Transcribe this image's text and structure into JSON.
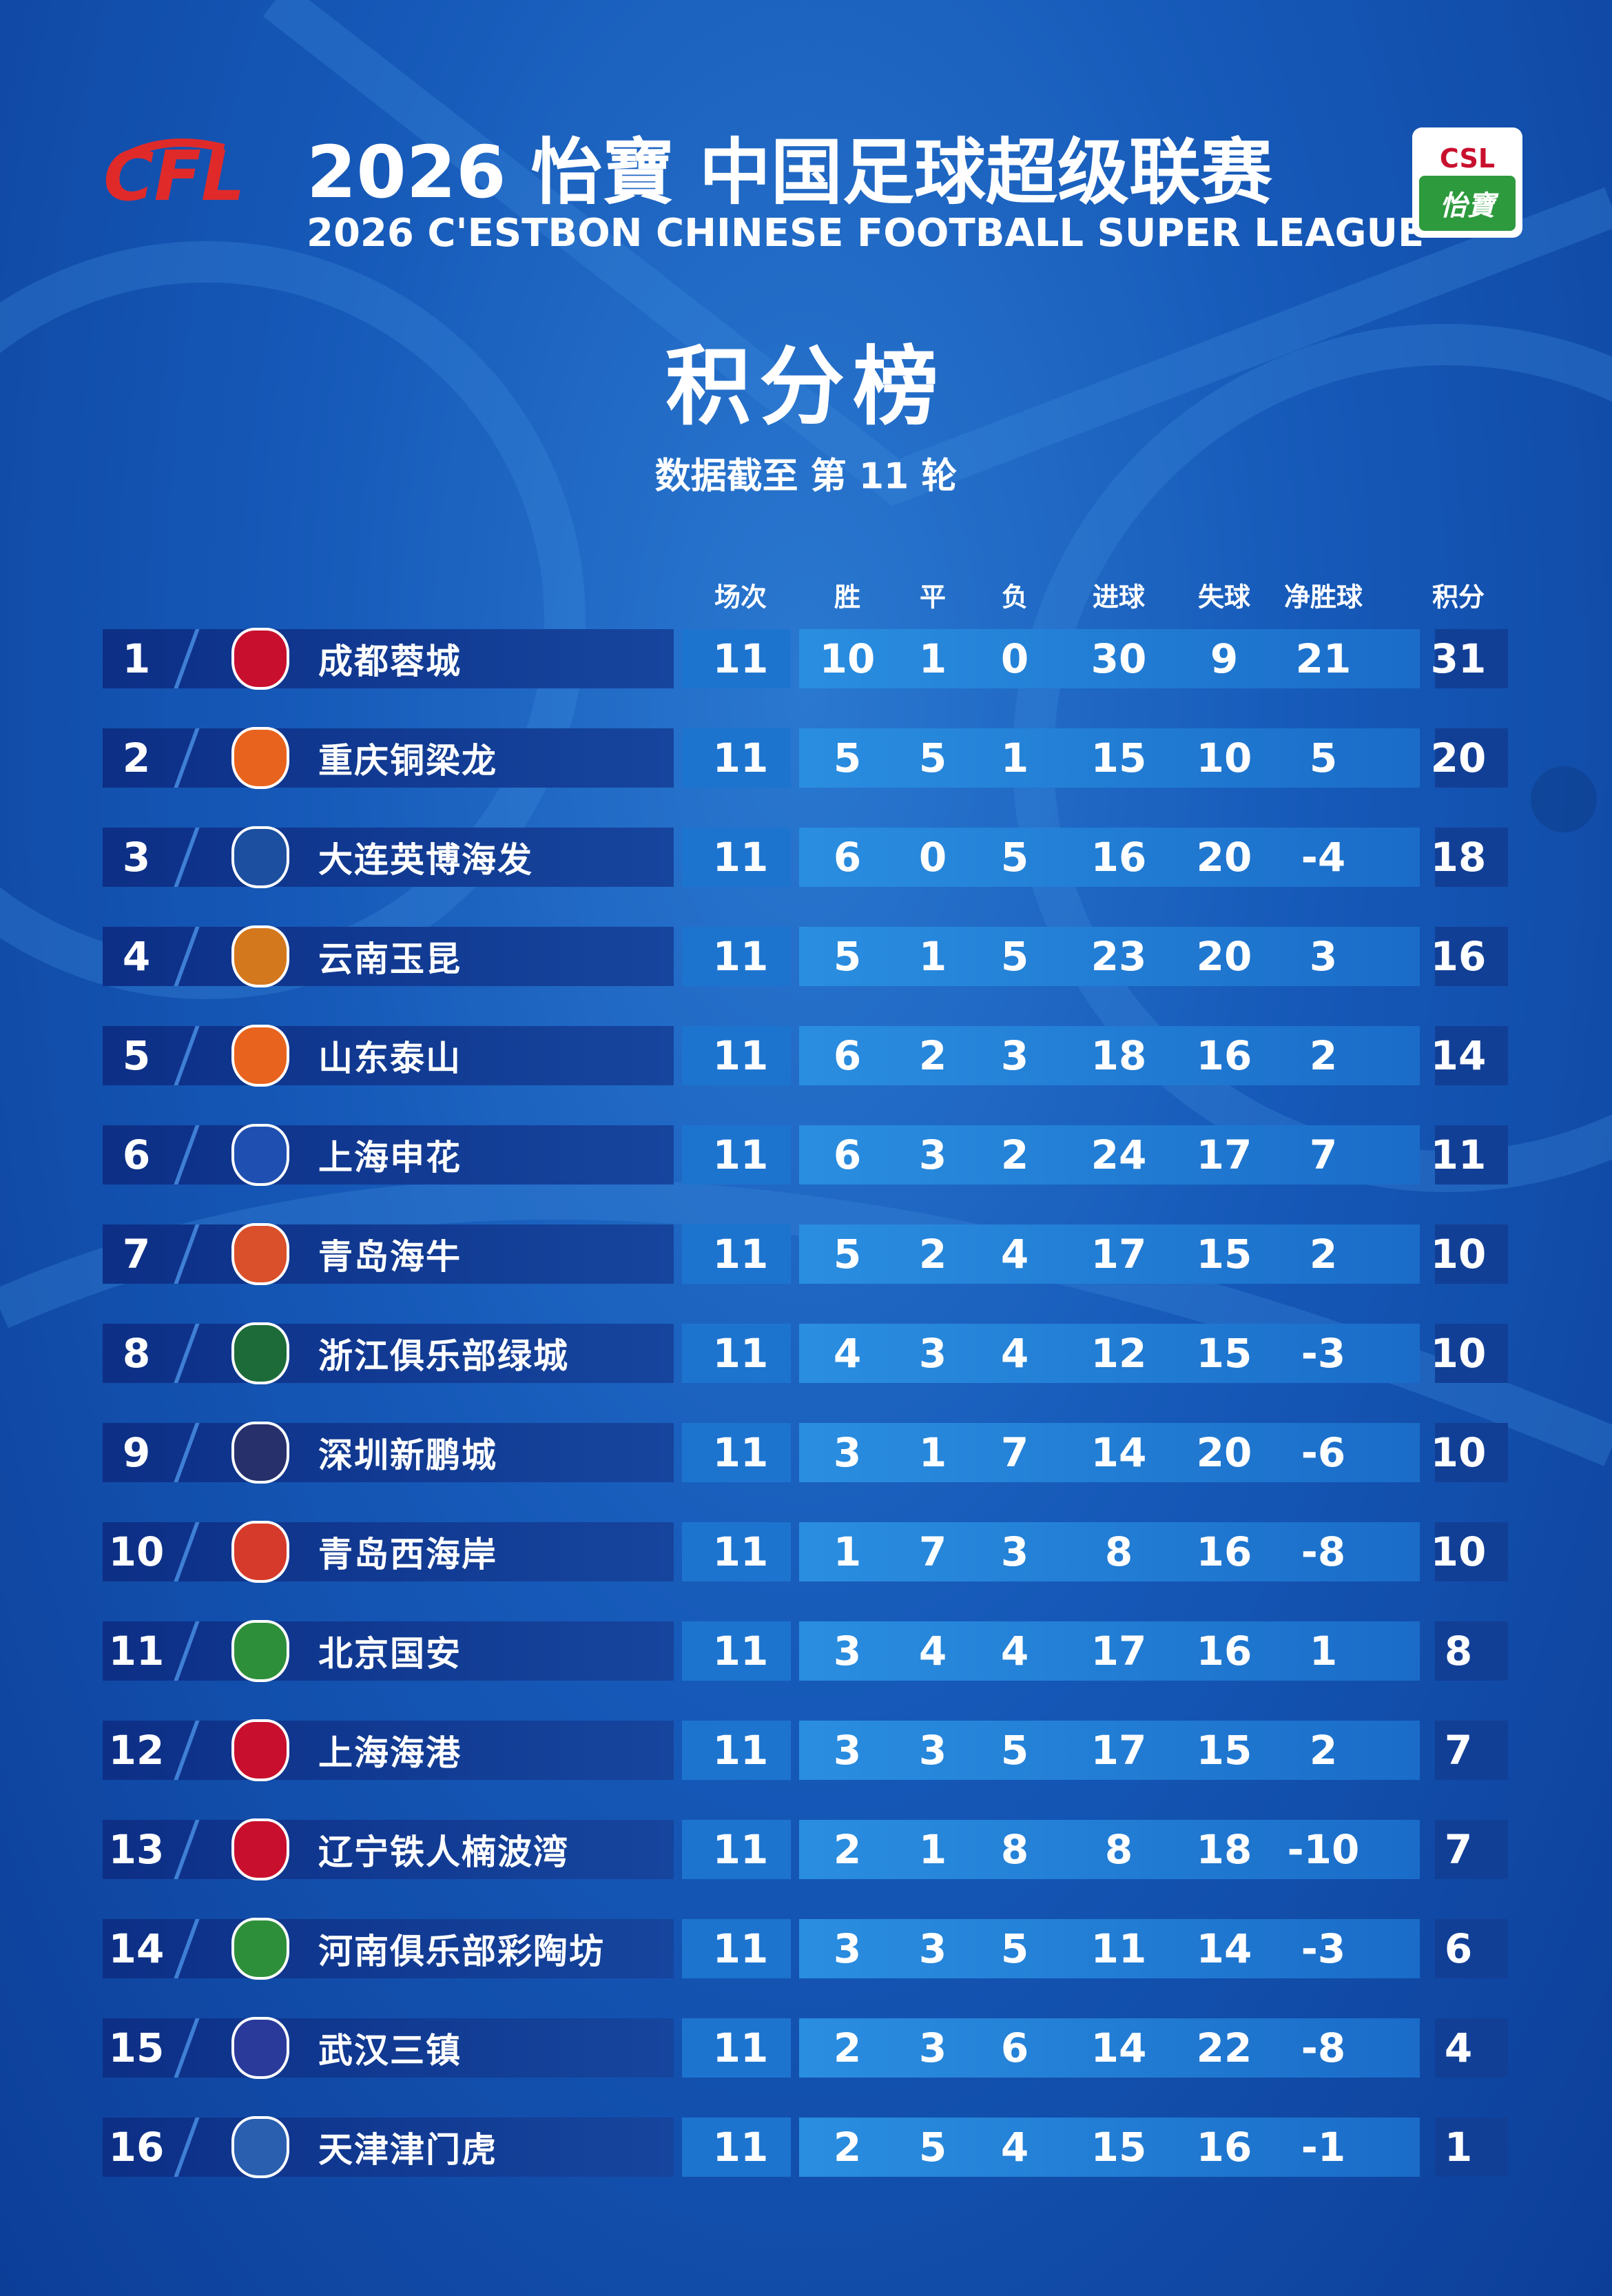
{
  "header": {
    "title_cn": "2026 怡寶 中国足球超级联赛",
    "title_en": "2026 C'ESTBON CHINESE FOOTBALL SUPER LEAGUE",
    "logo": "CFL",
    "badge": "CSL",
    "badge_brand": "怡寶"
  },
  "table": {
    "title": "积分榜",
    "subtitle": "数据截至 第 11 轮",
    "columns": [
      "场次",
      "胜",
      "平",
      "负",
      "进球",
      "失球",
      "净胜球",
      "积分"
    ],
    "rows": [
      [
        1,
        "成都蓉城",
        11,
        10,
        1,
        0,
        30,
        9,
        21,
        31
      ],
      [
        2,
        "重庆铜梁龙",
        11,
        5,
        5,
        1,
        15,
        10,
        5,
        20
      ],
      [
        3,
        "大连英博海发",
        11,
        6,
        0,
        5,
        16,
        20,
        -4,
        18
      ],
      [
        4,
        "云南玉昆",
        11,
        5,
        1,
        5,
        23,
        20,
        3,
        16
      ],
      [
        5,
        "山东泰山",
        11,
        6,
        2,
        3,
        18,
        16,
        2,
        14
      ],
      [
        6,
        "上海申花",
        11,
        6,
        3,
        2,
        24,
        17,
        7,
        11
      ],
      [
        7,
        "青岛海牛",
        11,
        5,
        2,
        4,
        17,
        15,
        2,
        10
      ],
      [
        8,
        "浙江俱乐部绿城",
        11,
        4,
        3,
        4,
        12,
        15,
        -3,
        10
      ],
      [
        9,
        "深圳新鹏城",
        11,
        3,
        1,
        7,
        14,
        20,
        -6,
        10
      ],
      [
        10,
        "青岛西海岸",
        11,
        1,
        7,
        3,
        8,
        16,
        -8,
        10
      ],
      [
        11,
        "北京国安",
        11,
        3,
        4,
        4,
        17,
        16,
        1,
        8
      ],
      [
        12,
        "上海海港",
        11,
        3,
        3,
        5,
        17,
        15,
        2,
        7
      ],
      [
        13,
        "辽宁铁人楠波湾",
        11,
        2,
        1,
        8,
        8,
        18,
        -10,
        7
      ],
      [
        14,
        "河南俱乐部彩陶坊",
        11,
        3,
        3,
        5,
        11,
        14,
        -3,
        6
      ],
      [
        15,
        "武汉三镇",
        11,
        2,
        3,
        6,
        14,
        22,
        -8,
        4
      ],
      [
        16,
        "天津津门虎",
        11,
        2,
        5,
        4,
        15,
        16,
        -1,
        1
      ]
    ]
  }
}
